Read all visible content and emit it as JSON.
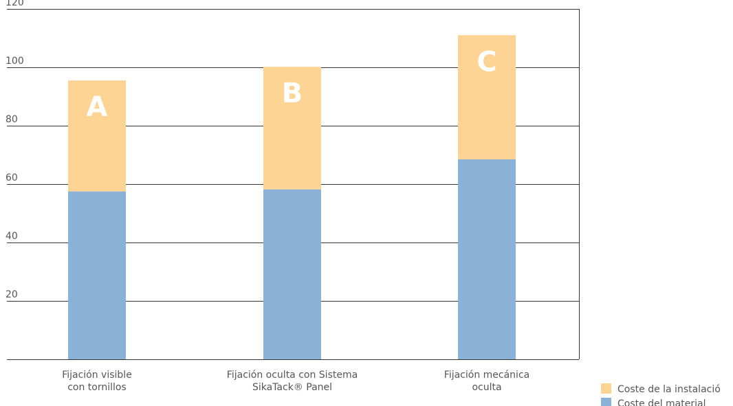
{
  "chart_data": {
    "type": "bar",
    "stacked": true,
    "categories": [
      [
        "Fijación visible",
        "con tornillos"
      ],
      [
        "Fijación oculta con Sistema",
        "SikaTack® Panel"
      ],
      [
        "Fijación mecánica",
        "oculta"
      ]
    ],
    "bar_letters": [
      "A",
      "B",
      "C"
    ],
    "series": [
      {
        "name": "Coste del material",
        "color": "#8ab2d6",
        "values": [
          57.5,
          58.2,
          68.5
        ]
      },
      {
        "name": "Coste de la instalació",
        "color": "#fed494",
        "values": [
          38,
          42,
          42.5
        ]
      }
    ],
    "ylim": [
      0,
      120
    ],
    "yticks": [
      20,
      40,
      60,
      80,
      100,
      120
    ],
    "grid": true,
    "legend_position": "bottom-right",
    "grid_color": "#333333"
  }
}
